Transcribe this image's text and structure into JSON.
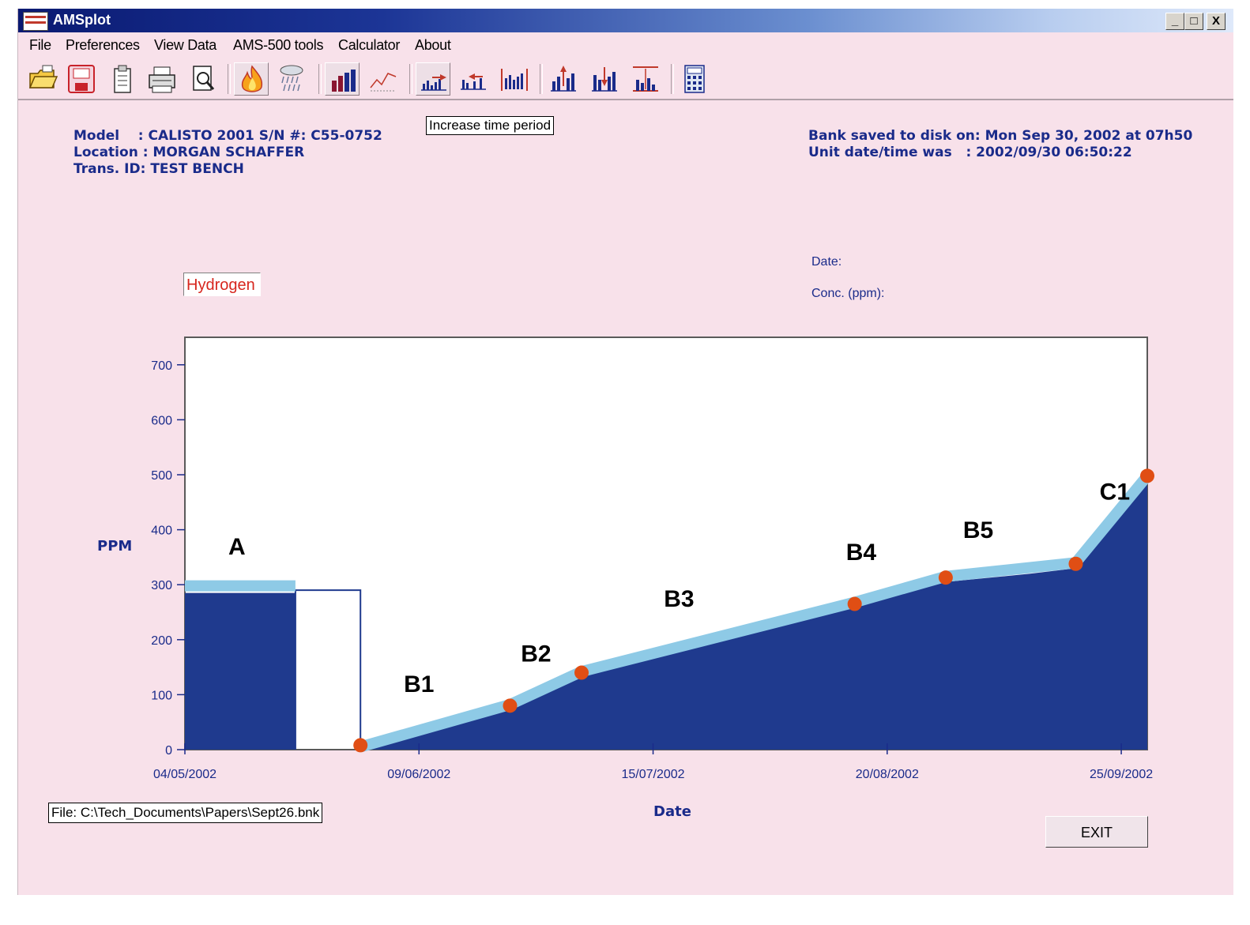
{
  "window": {
    "title": "AMSplot",
    "buttons": {
      "minimize": "_",
      "maximize": "□",
      "close": "X"
    }
  },
  "menu": [
    {
      "label": "File"
    },
    {
      "label": "Preferences"
    },
    {
      "label": "View Data"
    },
    {
      "label": "AMS-500 tools"
    },
    {
      "label": "Calculator"
    },
    {
      "label": "About"
    }
  ],
  "toolbar": {
    "buttons": [
      {
        "icon": "open-folder-icon"
      },
      {
        "icon": "save-disk-icon"
      },
      {
        "icon": "clipboard-icon"
      },
      {
        "icon": "printer-icon"
      },
      {
        "icon": "print-preview-icon"
      },
      {
        "icon": "fire-gas-icon",
        "pressed": true
      },
      {
        "icon": "moisture-icon"
      },
      {
        "icon": "bar-graph-icon",
        "pressed": true
      },
      {
        "icon": "line-graph-icon"
      },
      {
        "icon": "increase-time-period-icon",
        "pressed": true
      },
      {
        "icon": "decrease-time-period-icon"
      },
      {
        "icon": "fit-time-period-icon"
      },
      {
        "icon": "increase-scale-icon"
      },
      {
        "icon": "decrease-scale-icon"
      },
      {
        "icon": "fit-scale-icon"
      },
      {
        "icon": "calculator-icon"
      }
    ],
    "tooltip": "Increase time period"
  },
  "header": {
    "model": "Model    : CALISTO 2001 S/N #: C55-0752",
    "location": "Location : MORGAN SCHAFFER",
    "trans_id": "Trans. ID: TEST BENCH",
    "bank_saved": "Bank saved to disk on: Mon Sep 30, 2002 at 07h50",
    "unit_datetime": "Unit date/time was   : 2002/09/30 06:50:22"
  },
  "cursor_readout": {
    "date_label": "Date:",
    "conc_label": "Conc. (ppm):"
  },
  "gas_selector": {
    "value": "Hydrogen"
  },
  "chart_data": {
    "type": "area",
    "title": "",
    "xlabel": "Date",
    "ylabel": "PPM",
    "ylim": [
      0,
      750
    ],
    "yticks": [
      0,
      100,
      200,
      300,
      400,
      500,
      600,
      700
    ],
    "xlim": [
      "04/05/2002",
      "29/09/2002"
    ],
    "xticks": [
      "04/05/2002",
      "09/06/2002",
      "15/07/2002",
      "20/08/2002",
      "25/09/2002"
    ],
    "grid": false,
    "area_series": [
      {
        "name": "A",
        "x": [
          "04/05/2002",
          "21/05/2002"
        ],
        "y": [
          285,
          285
        ]
      },
      {
        "name": "B",
        "x": [
          "31/05/2002",
          "23/06/2002",
          "04/07/2002",
          "15/08/2002",
          "29/08/2002",
          "11/09/2002",
          "18/09/2002",
          "29/09/2002"
        ],
        "y": [
          0,
          75,
          135,
          260,
          305,
          320,
          330,
          490
        ]
      }
    ],
    "gap_outline": {
      "x": [
        "21/05/2002",
        "31/05/2002"
      ],
      "y": 290
    },
    "trend_segments": [
      {
        "x": [
          "04/05/2002",
          "21/05/2002"
        ],
        "y": [
          298,
          298
        ]
      },
      {
        "x": [
          "31/05/2002",
          "23/06/2002",
          "04/07/2002",
          "15/08/2002",
          "29/08/2002",
          "18/09/2002",
          "29/09/2002"
        ],
        "y": [
          5,
          82,
          142,
          268,
          315,
          340,
          498
        ]
      }
    ],
    "points": [
      {
        "x": "31/05/2002",
        "y": 8
      },
      {
        "x": "23/06/2002",
        "y": 80
      },
      {
        "x": "04/07/2002",
        "y": 140
      },
      {
        "x": "15/08/2002",
        "y": 265
      },
      {
        "x": "29/08/2002",
        "y": 313
      },
      {
        "x": "18/09/2002",
        "y": 338
      },
      {
        "x": "29/09/2002",
        "y": 498
      }
    ],
    "annotations": [
      {
        "text": "A",
        "x": "12/05/2002",
        "y": 355
      },
      {
        "text": "B1",
        "x": "09/06/2002",
        "y": 105
      },
      {
        "text": "B2",
        "x": "27/06/2002",
        "y": 160
      },
      {
        "text": "B3",
        "x": "19/07/2002",
        "y": 260
      },
      {
        "text": "B4",
        "x": "16/08/2002",
        "y": 345
      },
      {
        "text": "B5",
        "x": "03/09/2002",
        "y": 385
      },
      {
        "text": "C1",
        "x": "24/09/2002",
        "y": 455
      }
    ],
    "colors": {
      "area": "#1f3a8e",
      "trend": "#8ecae6",
      "point": "#e04e14",
      "axis_text": "#1a2b8a"
    }
  },
  "footer": {
    "file_path": "File: C:\\Tech_Documents\\Papers\\Sept26.bnk",
    "exit_label": "EXIT"
  }
}
